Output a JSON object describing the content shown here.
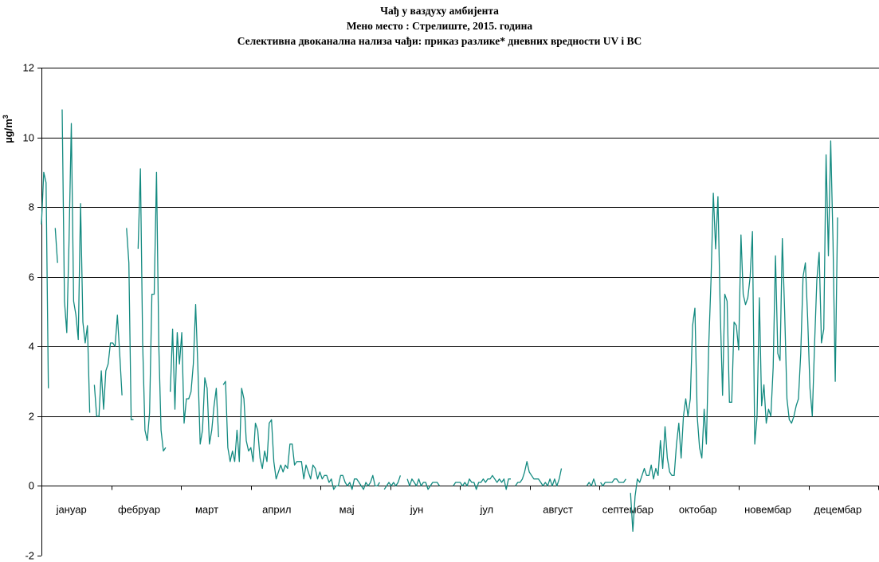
{
  "chart_data": {
    "type": "line",
    "title_lines": [
      "Чађ у ваздуху амбијента",
      "Мено место : Стрелиште, 2015. година",
      "Селективна двоканална нализа чађи:  приказ разлике* дневних вредности UV i BC"
    ],
    "ylabel": "µg/m",
    "ylabel_sup": "3",
    "ylim": [
      -2,
      12
    ],
    "yticks": [
      -2,
      0,
      2,
      4,
      6,
      8,
      10,
      12
    ],
    "grid": true,
    "month_labels": [
      "јануар",
      "фебруар",
      "март",
      "април",
      "мај",
      "јун",
      "јул",
      "август",
      "септембар",
      "октобар",
      "новембар",
      "децембар"
    ],
    "line_color": "#138a80",
    "x_start": "2015-01-01",
    "x_end": "2015-12-31",
    "series": [
      {
        "points": [
          [
            1,
            7.5
          ],
          [
            2,
            9.0
          ],
          [
            3,
            8.7
          ],
          [
            4,
            2.8
          ],
          [
            7,
            7.4
          ],
          [
            8,
            6.4
          ],
          [
            10,
            10.8
          ],
          [
            11,
            5.3
          ],
          [
            12,
            4.4
          ],
          [
            13,
            7.0
          ],
          [
            14,
            10.4
          ],
          [
            15,
            5.3
          ],
          [
            16,
            4.9
          ],
          [
            17,
            4.2
          ],
          [
            18,
            8.1
          ],
          [
            19,
            4.7
          ],
          [
            20,
            4.1
          ],
          [
            21,
            4.6
          ],
          [
            22,
            2.1
          ],
          [
            24,
            2.9
          ],
          [
            25,
            2.0
          ],
          [
            26,
            2.0
          ],
          [
            27,
            3.3
          ],
          [
            28,
            2.2
          ],
          [
            29,
            3.3
          ],
          [
            30,
            3.5
          ],
          [
            31,
            4.1
          ],
          [
            32,
            4.1
          ],
          [
            33,
            4.0
          ],
          [
            34,
            4.9
          ],
          [
            35,
            3.8
          ],
          [
            36,
            2.6
          ],
          [
            38,
            7.4
          ],
          [
            39,
            6.4
          ],
          [
            40,
            1.9
          ],
          [
            41,
            1.9
          ],
          [
            43,
            6.8
          ],
          [
            44,
            9.1
          ],
          [
            45,
            4.1
          ],
          [
            46,
            1.6
          ],
          [
            47,
            1.3
          ],
          [
            48,
            2.1
          ],
          [
            49,
            5.5
          ],
          [
            50,
            5.5
          ],
          [
            51,
            9.0
          ],
          [
            52,
            4.0
          ],
          [
            53,
            1.6
          ],
          [
            54,
            1.0
          ],
          [
            55,
            1.1
          ],
          [
            57,
            2.7
          ],
          [
            58,
            4.5
          ],
          [
            59,
            2.2
          ],
          [
            60,
            4.4
          ],
          [
            61,
            3.5
          ],
          [
            62,
            4.4
          ],
          [
            63,
            1.8
          ],
          [
            64,
            2.5
          ],
          [
            65,
            2.5
          ],
          [
            66,
            2.7
          ],
          [
            67,
            3.5
          ],
          [
            68,
            5.2
          ],
          [
            69,
            3.4
          ],
          [
            70,
            1.2
          ],
          [
            71,
            1.6
          ],
          [
            72,
            3.1
          ],
          [
            73,
            2.8
          ],
          [
            74,
            1.2
          ],
          [
            75,
            1.6
          ],
          [
            76,
            2.3
          ],
          [
            77,
            2.8
          ],
          [
            78,
            1.4
          ],
          [
            80,
            2.9
          ],
          [
            81,
            3.0
          ],
          [
            82,
            1.1
          ],
          [
            83,
            0.7
          ],
          [
            84,
            1.0
          ],
          [
            85,
            0.7
          ],
          [
            86,
            1.6
          ],
          [
            87,
            0.7
          ],
          [
            88,
            2.8
          ],
          [
            89,
            2.5
          ],
          [
            90,
            1.3
          ],
          [
            91,
            1.0
          ],
          [
            92,
            1.1
          ],
          [
            93,
            0.7
          ],
          [
            94,
            1.8
          ],
          [
            95,
            1.6
          ],
          [
            96,
            0.8
          ],
          [
            97,
            0.5
          ],
          [
            98,
            1.0
          ],
          [
            99,
            0.7
          ],
          [
            100,
            1.8
          ],
          [
            101,
            1.9
          ],
          [
            102,
            0.7
          ],
          [
            103,
            0.2
          ],
          [
            104,
            0.4
          ],
          [
            105,
            0.6
          ],
          [
            106,
            0.4
          ],
          [
            107,
            0.6
          ],
          [
            108,
            0.5
          ],
          [
            109,
            1.2
          ],
          [
            110,
            1.2
          ],
          [
            111,
            0.6
          ],
          [
            112,
            0.7
          ],
          [
            113,
            0.7
          ],
          [
            114,
            0.7
          ],
          [
            115,
            0.2
          ],
          [
            116,
            0.6
          ],
          [
            117,
            0.4
          ],
          [
            118,
            0.2
          ],
          [
            119,
            0.6
          ],
          [
            120,
            0.5
          ],
          [
            121,
            0.2
          ],
          [
            122,
            0.4
          ],
          [
            123,
            0.2
          ],
          [
            124,
            0.3
          ],
          [
            125,
            0.3
          ],
          [
            126,
            0.1
          ],
          [
            127,
            0.2
          ],
          [
            128,
            -0.1
          ],
          [
            129,
            0.0
          ],
          [
            130,
            0.0
          ],
          [
            131,
            0.3
          ],
          [
            132,
            0.3
          ],
          [
            133,
            0.1
          ],
          [
            134,
            0.0
          ],
          [
            135,
            0.1
          ],
          [
            136,
            -0.1
          ],
          [
            137,
            0.2
          ],
          [
            138,
            0.2
          ],
          [
            139,
            0.1
          ],
          [
            140,
            0.0
          ],
          [
            141,
            -0.1
          ],
          [
            142,
            0.1
          ],
          [
            143,
            0.0
          ],
          [
            144,
            0.1
          ],
          [
            145,
            0.3
          ],
          [
            146,
            0.0
          ],
          [
            147,
            0.0
          ],
          [
            148,
            0.1
          ],
          [
            150,
            -0.1
          ],
          [
            151,
            0.0
          ],
          [
            152,
            0.1
          ],
          [
            153,
            0.0
          ],
          [
            154,
            0.1
          ],
          [
            155,
            0.0
          ],
          [
            156,
            0.1
          ],
          [
            157,
            0.3
          ],
          [
            160,
            0.2
          ],
          [
            161,
            0.0
          ],
          [
            162,
            0.2
          ],
          [
            163,
            0.1
          ],
          [
            164,
            0.0
          ],
          [
            165,
            0.2
          ],
          [
            166,
            0.0
          ],
          [
            167,
            0.1
          ],
          [
            168,
            0.1
          ],
          [
            169,
            -0.1
          ],
          [
            170,
            0.0
          ],
          [
            171,
            0.1
          ],
          [
            172,
            0.1
          ],
          [
            173,
            0.1
          ],
          [
            174,
            0.0
          ],
          [
            180,
            0.0
          ],
          [
            181,
            0.1
          ],
          [
            182,
            0.1
          ],
          [
            183,
            0.1
          ],
          [
            184,
            0.0
          ],
          [
            185,
            0.1
          ],
          [
            186,
            0.0
          ],
          [
            187,
            0.2
          ],
          [
            188,
            0.1
          ],
          [
            189,
            0.1
          ],
          [
            190,
            -0.1
          ],
          [
            191,
            0.1
          ],
          [
            192,
            0.1
          ],
          [
            193,
            0.2
          ],
          [
            194,
            0.1
          ],
          [
            195,
            0.2
          ],
          [
            196,
            0.2
          ],
          [
            197,
            0.3
          ],
          [
            198,
            0.2
          ],
          [
            199,
            0.1
          ],
          [
            200,
            0.2
          ],
          [
            201,
            0.1
          ],
          [
            202,
            0.2
          ],
          [
            203,
            -0.1
          ],
          [
            204,
            0.2
          ],
          [
            205,
            0.2
          ],
          [
            207,
            0.0
          ],
          [
            208,
            0.1
          ],
          [
            209,
            0.1
          ],
          [
            210,
            0.2
          ],
          [
            211,
            0.4
          ],
          [
            212,
            0.7
          ],
          [
            213,
            0.4
          ],
          [
            214,
            0.3
          ],
          [
            215,
            0.2
          ],
          [
            216,
            0.2
          ],
          [
            217,
            0.2
          ],
          [
            218,
            0.1
          ],
          [
            219,
            0.0
          ],
          [
            220,
            0.1
          ],
          [
            221,
            0.0
          ],
          [
            222,
            0.2
          ],
          [
            223,
            0.0
          ],
          [
            224,
            0.2
          ],
          [
            225,
            0.0
          ],
          [
            226,
            0.2
          ],
          [
            227,
            0.5
          ],
          [
            238,
            0.0
          ],
          [
            239,
            0.1
          ],
          [
            240,
            0.0
          ],
          [
            241,
            0.2
          ],
          [
            242,
            0.0
          ],
          [
            244,
            0.1
          ],
          [
            245,
            0.0
          ],
          [
            246,
            0.1
          ],
          [
            247,
            0.1
          ],
          [
            248,
            0.1
          ],
          [
            249,
            0.1
          ],
          [
            250,
            0.2
          ],
          [
            251,
            0.2
          ],
          [
            252,
            0.1
          ],
          [
            253,
            0.1
          ],
          [
            254,
            0.1
          ],
          [
            255,
            0.2
          ],
          [
            257,
            -0.2
          ],
          [
            258,
            -1.3
          ],
          [
            259,
            -0.3
          ],
          [
            260,
            0.2
          ],
          [
            261,
            0.1
          ],
          [
            262,
            0.3
          ],
          [
            263,
            0.5
          ],
          [
            264,
            0.3
          ],
          [
            265,
            0.3
          ],
          [
            266,
            0.6
          ],
          [
            267,
            0.2
          ],
          [
            268,
            0.5
          ],
          [
            269,
            0.3
          ],
          [
            270,
            1.3
          ],
          [
            271,
            0.5
          ],
          [
            272,
            1.7
          ],
          [
            273,
            0.8
          ],
          [
            274,
            0.4
          ],
          [
            275,
            0.3
          ],
          [
            276,
            0.3
          ],
          [
            277,
            1.2
          ],
          [
            278,
            1.8
          ],
          [
            279,
            0.8
          ],
          [
            280,
            2.0
          ],
          [
            281,
            2.5
          ],
          [
            282,
            2.0
          ],
          [
            283,
            2.5
          ],
          [
            284,
            4.6
          ],
          [
            285,
            5.1
          ],
          [
            286,
            2.0
          ],
          [
            287,
            1.1
          ],
          [
            288,
            0.8
          ],
          [
            289,
            2.2
          ],
          [
            290,
            1.2
          ],
          [
            291,
            4.0
          ],
          [
            292,
            5.9
          ],
          [
            293,
            8.4
          ],
          [
            294,
            6.8
          ],
          [
            295,
            8.3
          ],
          [
            296,
            5.0
          ],
          [
            297,
            2.6
          ],
          [
            298,
            5.5
          ],
          [
            299,
            5.3
          ],
          [
            300,
            2.4
          ],
          [
            301,
            2.4
          ],
          [
            302,
            4.7
          ],
          [
            303,
            4.6
          ],
          [
            304,
            3.9
          ],
          [
            305,
            7.2
          ],
          [
            306,
            5.5
          ],
          [
            307,
            5.2
          ],
          [
            308,
            5.4
          ],
          [
            309,
            6.0
          ],
          [
            310,
            7.3
          ],
          [
            311,
            1.2
          ],
          [
            312,
            2.0
          ],
          [
            313,
            5.4
          ],
          [
            314,
            2.3
          ],
          [
            315,
            2.9
          ],
          [
            316,
            1.8
          ],
          [
            317,
            2.2
          ],
          [
            318,
            2.0
          ],
          [
            319,
            3.4
          ],
          [
            320,
            6.6
          ],
          [
            321,
            3.8
          ],
          [
            322,
            3.6
          ],
          [
            323,
            7.1
          ],
          [
            324,
            5.0
          ],
          [
            325,
            2.5
          ],
          [
            326,
            1.9
          ],
          [
            327,
            1.8
          ],
          [
            328,
            2.0
          ],
          [
            329,
            2.3
          ],
          [
            330,
            2.5
          ],
          [
            331,
            3.8
          ],
          [
            332,
            6.0
          ],
          [
            333,
            6.4
          ],
          [
            334,
            4.8
          ],
          [
            335,
            2.8
          ],
          [
            336,
            2.0
          ],
          [
            337,
            4.1
          ],
          [
            338,
            5.9
          ],
          [
            339,
            6.7
          ],
          [
            340,
            4.1
          ],
          [
            341,
            4.5
          ],
          [
            342,
            9.5
          ],
          [
            343,
            6.6
          ],
          [
            344,
            9.9
          ],
          [
            345,
            7.0
          ],
          [
            346,
            3.0
          ],
          [
            347,
            7.7
          ]
        ]
      }
    ]
  }
}
